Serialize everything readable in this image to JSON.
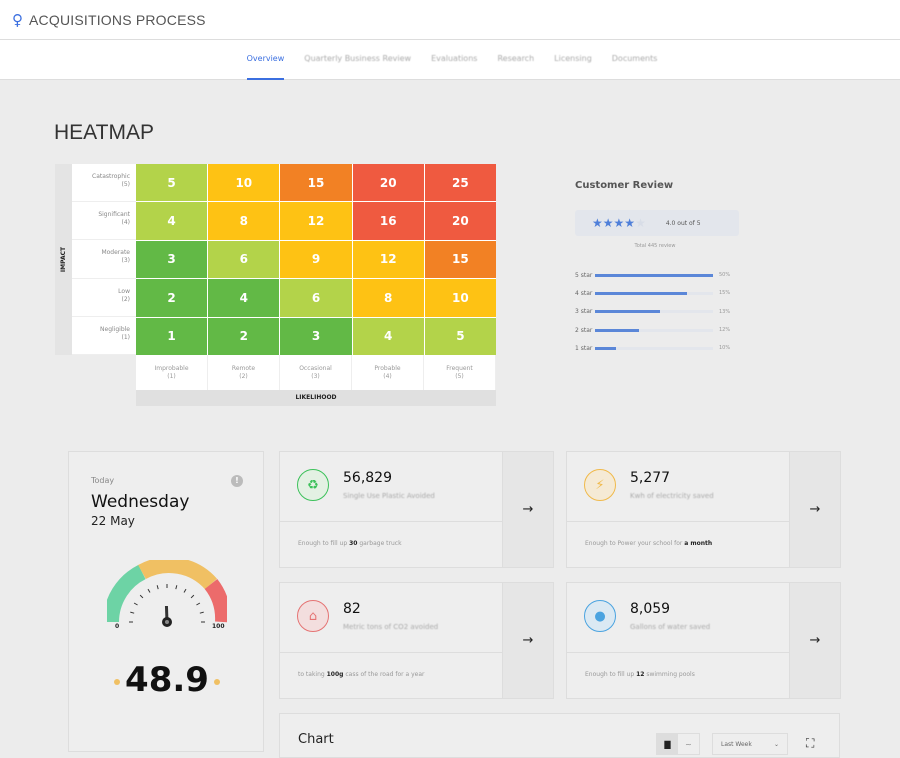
{
  "app": {
    "title": "ACQUISITIONS PROCESS",
    "logo_icon": "user-pin-icon"
  },
  "tabs": [
    {
      "label": "Overview",
      "active": true
    },
    {
      "label": "Quarterly Business Review"
    },
    {
      "label": "Evaluations"
    },
    {
      "label": "Research"
    },
    {
      "label": "Licensing"
    },
    {
      "label": "Documents"
    }
  ],
  "heatmap": {
    "title": "HEATMAP",
    "y_axis": "IMPACT",
    "x_axis": "LIKELIHOOD",
    "rows": [
      {
        "name": "Catastrophic",
        "score": "(5)"
      },
      {
        "name": "Significant",
        "score": "(4)"
      },
      {
        "name": "Moderate",
        "score": "(3)"
      },
      {
        "name": "Low",
        "score": "(2)"
      },
      {
        "name": "Negligible",
        "score": "(1)"
      }
    ],
    "cols": [
      {
        "name": "Improbable",
        "score": "(1)"
      },
      {
        "name": "Remote",
        "score": "(2)"
      },
      {
        "name": "Occasional",
        "score": "(3)"
      },
      {
        "name": "Probable",
        "score": "(4)"
      },
      {
        "name": "Frequent",
        "score": "(5)"
      }
    ],
    "values": [
      [
        5,
        10,
        15,
        20,
        25
      ],
      [
        4,
        8,
        12,
        16,
        20
      ],
      [
        3,
        6,
        9,
        12,
        15
      ],
      [
        2,
        4,
        6,
        8,
        10
      ],
      [
        1,
        2,
        3,
        4,
        5
      ]
    ],
    "levels": [
      [
        "lg",
        "y",
        "o",
        "r",
        "r"
      ],
      [
        "lg",
        "y",
        "y",
        "r",
        "r"
      ],
      [
        "g",
        "lg",
        "y",
        "y",
        "o"
      ],
      [
        "g",
        "g",
        "lg",
        "y",
        "y"
      ],
      [
        "g",
        "g",
        "g",
        "lg",
        "lg"
      ]
    ],
    "colors": {
      "g": "#62b946",
      "lg": "#b3d34a",
      "y": "#fec214",
      "o": "#f28124",
      "r": "#ef5a40"
    }
  },
  "review": {
    "title": "Customer Review",
    "rating": 4,
    "max": 5,
    "rating_text": "4.0 out of 5",
    "total": "Total 445 review",
    "bars": [
      {
        "label": "5 star",
        "pct": "50%",
        "fill": 1.0
      },
      {
        "label": "4 star",
        "pct": "15%",
        "fill": 0.78
      },
      {
        "label": "3 star",
        "pct": "13%",
        "fill": 0.55
      },
      {
        "label": "2 star",
        "pct": "12%",
        "fill": 0.37
      },
      {
        "label": "1 star",
        "pct": "10%",
        "fill": 0.18
      }
    ]
  },
  "today": {
    "label": "Today",
    "day": "Wednesday",
    "date": "22 May",
    "gauge_min": "0",
    "gauge_max": "100",
    "value": "48.9",
    "gauge_value": 48.9
  },
  "stats": [
    {
      "value": "56,829",
      "label": "Single Use Plastic Avoided",
      "foot_pre": "Enough to fill up ",
      "foot_bold": "30",
      "foot_post": " garbage truck",
      "icon": "recycle-icon",
      "color": "#3cc15a",
      "bg": "#e3f1e3"
    },
    {
      "value": "5,277",
      "label": "Kwh of electricity saved",
      "foot_pre": "Enough to Power your school for ",
      "foot_bold": "a month",
      "foot_post": "",
      "icon": "lightning-icon",
      "color": "#f0b94a",
      "bg": "#f5ead5"
    },
    {
      "value": "82",
      "label": "Metric tons of CO2 avoided",
      "foot_pre": "to taking ",
      "foot_bold": "100g",
      "foot_post": " cass of the road for a year",
      "icon": "factory-icon",
      "color": "#e57373",
      "bg": "#f3dede"
    },
    {
      "value": "8,059",
      "label": "Gallons of water saved",
      "foot_pre": "Enough to fill up ",
      "foot_bold": "12",
      "foot_post": " swimming pools",
      "icon": "water-drop-icon",
      "color": "#4aa3e0",
      "bg": "#dbe9f3"
    }
  ],
  "chart": {
    "title": "Chart",
    "range": "Last Week"
  }
}
